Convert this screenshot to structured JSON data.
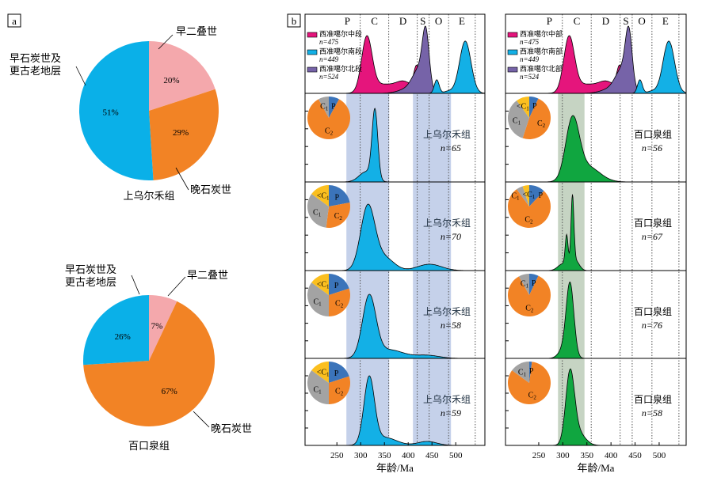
{
  "panel_labels": {
    "a": "a",
    "b": "b"
  },
  "colors": {
    "pink_P": "#f4a8ac",
    "orange_C2": "#f28325",
    "blue_C1": "#0ab0e8",
    "gray_C1": "#a3a3a3",
    "yellow_lt_C1": "#fbbf1f",
    "blue_P": "#3b74ba",
    "middle": "#e5157c",
    "south": "#13b0e6",
    "north": "#7663a8",
    "green": "#10a640",
    "shade_blue": "#c5d1ea",
    "shade_green": "#c6d4c3"
  },
  "chart_data": [
    {
      "type": "pie",
      "caption": "上乌尔禾组",
      "slices": [
        {
          "label": "早二叠世",
          "pct_text": "20%",
          "value": 20,
          "color": "#f4a8ac"
        },
        {
          "label": "晚石炭世",
          "pct_text": "29%",
          "value": 29,
          "color": "#f28325"
        },
        {
          "label": "早石炭世及更古老地层",
          "label_lines": [
            "早石炭世及",
            "更古老地层"
          ],
          "pct_text": "51%",
          "value": 51,
          "color": "#0ab0e8"
        }
      ]
    },
    {
      "type": "pie",
      "caption": "百口泉组",
      "slices": [
        {
          "label": "早二叠世",
          "pct_text": "7%",
          "value": 7,
          "color": "#f4a8ac"
        },
        {
          "label": "晚石炭世",
          "pct_text": "67%",
          "value": 67,
          "color": "#f28325"
        },
        {
          "label": "早石炭世及更古老地层",
          "label_lines": [
            "早石炭世及",
            "更古老地层"
          ],
          "pct_text": "26%",
          "value": 26,
          "color": "#0ab0e8"
        }
      ]
    },
    {
      "type": "area",
      "xlabel": "年龄/Ma",
      "xticks": [
        250,
        300,
        350,
        400,
        450,
        500
      ],
      "xlim": [
        183,
        561
      ],
      "period_boundaries": [
        299,
        359,
        419,
        444,
        485,
        541
      ],
      "periods": [
        {
          "label": "P",
          "x": 272
        },
        {
          "label": "C",
          "x": 329
        },
        {
          "label": "D",
          "x": 389
        },
        {
          "label": "S",
          "x": 431
        },
        {
          "label": "O",
          "x": 464
        },
        {
          "label": "E",
          "x": 513
        }
      ],
      "shaded_ranges": [
        [
          270,
          360
        ],
        [
          410,
          490
        ]
      ],
      "legend": [
        {
          "name": "西准噶尔中段",
          "n": "n=475",
          "color": "#e5157c",
          "peaks": [
            [
              313,
              1.0,
              11
            ],
            [
              345,
              0.16,
              25
            ],
            [
              392,
              0.2,
              18
            ],
            [
              418,
              0.45,
              6
            ]
          ]
        },
        {
          "name": "西准噶尔南段",
          "n": "n=449",
          "color": "#13b0e6",
          "peaks": [
            [
              520,
              0.97,
              12
            ],
            [
              460,
              0.25,
              5
            ],
            [
              485,
              0.04,
              10
            ]
          ]
        },
        {
          "name": "西准噶尔北段",
          "n": "n=524",
          "color": "#7663a8",
          "peaks": [
            [
              437,
              0.95,
              7
            ],
            [
              424,
              0.42,
              14
            ],
            [
              400,
              0.08,
              20
            ]
          ]
        }
      ],
      "samples": [
        {
          "name": "上乌尔禾组",
          "n": "n=65",
          "peaks": [
            [
              330,
              1.0,
              6
            ],
            [
              312,
              0.15,
              15
            ]
          ],
          "pie": {
            "P": 8,
            "C2": 84,
            "C1": 8,
            "<C1": 0
          }
        },
        {
          "name": "上乌尔禾组",
          "n": "n=70",
          "peaks": [
            [
              315,
              1.0,
              15
            ],
            [
              350,
              0.2,
              20
            ],
            [
              445,
              0.1,
              25
            ]
          ],
          "pie": {
            "P": 22,
            "C2": 30,
            "C1": 33,
            "<C1": 15
          }
        },
        {
          "name": "上乌尔禾组",
          "n": "n=58",
          "peaks": [
            [
              318,
              1.0,
              14
            ],
            [
              360,
              0.14,
              30
            ],
            [
              440,
              0.05,
              25
            ]
          ],
          "pie": {
            "P": 20,
            "C2": 30,
            "C1": 35,
            "<C1": 15
          }
        },
        {
          "name": "上乌尔禾组",
          "n": "n=59",
          "peaks": [
            [
              318,
              1.0,
              11
            ],
            [
              350,
              0.12,
              25
            ],
            [
              440,
              0.06,
              20
            ]
          ],
          "pie": {
            "P": 20,
            "C2": 30,
            "C1": 35,
            "<C1": 15
          }
        }
      ]
    },
    {
      "type": "area",
      "xlabel": "年龄/Ma",
      "xticks": [
        250,
        300,
        350,
        400,
        450,
        500
      ],
      "xlim": [
        181,
        556
      ],
      "period_boundaries": [
        299,
        359,
        419,
        444,
        485,
        541
      ],
      "periods": [
        {
          "label": "P",
          "x": 272
        },
        {
          "label": "C",
          "x": 329
        },
        {
          "label": "D",
          "x": 389
        },
        {
          "label": "S",
          "x": 431
        },
        {
          "label": "O",
          "x": 464
        },
        {
          "label": "E",
          "x": 513
        }
      ],
      "shaded_ranges": [
        [
          290,
          345
        ]
      ],
      "legend": [
        {
          "name": "西准噶尔中部",
          "n": "n=475",
          "color": "#e5157c",
          "peaks": [
            [
              313,
              1.0,
              11
            ],
            [
              345,
              0.16,
              25
            ],
            [
              392,
              0.2,
              18
            ],
            [
              418,
              0.45,
              6
            ]
          ]
        },
        {
          "name": "西准噶尔南部",
          "n": "n=449",
          "color": "#13b0e6",
          "peaks": [
            [
              520,
              0.97,
              12
            ],
            [
              460,
              0.25,
              5
            ],
            [
              485,
              0.04,
              10
            ]
          ]
        },
        {
          "name": "西准噶尔北部",
          "n": "n=524",
          "color": "#7663a8",
          "peaks": [
            [
              437,
              0.95,
              7
            ],
            [
              424,
              0.42,
              14
            ],
            [
              400,
              0.08,
              20
            ]
          ]
        }
      ],
      "samples": [
        {
          "name": "百口泉组",
          "n": "n=56",
          "peaks": [
            [
              320,
              1.0,
              14
            ],
            [
              352,
              0.25,
              25
            ]
          ],
          "pie": {
            "P": 7,
            "C2": 48,
            "C1": 35,
            "<C1": 10
          }
        },
        {
          "name": "百口泉组",
          "n": "n=67",
          "peaks": [
            [
              320,
              1.0,
              3
            ],
            [
              308,
              0.45,
              3
            ],
            [
              300,
              0.1,
              10
            ],
            [
              326,
              0.15,
              8
            ]
          ],
          "pie": {
            "P": 12,
            "C2": 78,
            "C1": 5,
            "<C1": 5
          }
        },
        {
          "name": "百口泉组",
          "n": "n=76",
          "peaks": [
            [
              315,
              1.0,
              8
            ],
            [
              300,
              0.1,
              10
            ]
          ],
          "pie": {
            "P": 7,
            "C2": 85,
            "C1": 8,
            "<C1": 0
          }
        },
        {
          "name": "百口泉组",
          "n": "n=58",
          "peaks": [
            [
              315,
              1.0,
              9
            ],
            [
              330,
              0.2,
              15
            ]
          ],
          "pie": {
            "P": 2,
            "C2": 83,
            "C1": 15,
            "<C1": 0
          }
        }
      ]
    }
  ]
}
